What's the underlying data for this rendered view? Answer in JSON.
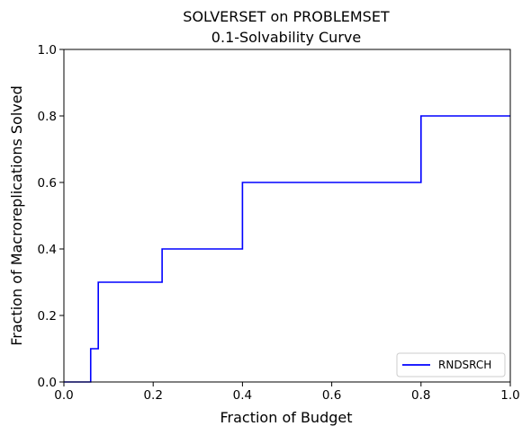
{
  "chart_data": {
    "type": "line",
    "step": true,
    "title_line1": "SOLVERSET on PROBLEMSET",
    "title_line2": "0.1-Solvability Curve",
    "xlabel": "Fraction of Budget",
    "ylabel": "Fraction of Macroreplications Solved",
    "xlim": [
      0.0,
      1.0
    ],
    "ylim": [
      0.0,
      1.0
    ],
    "xticks": [
      "0.0",
      "0.2",
      "0.4",
      "0.6",
      "0.8",
      "1.0"
    ],
    "yticks": [
      "0.0",
      "0.2",
      "0.4",
      "0.6",
      "0.8",
      "1.0"
    ],
    "grid": false,
    "legend_position": "lower-right",
    "series": [
      {
        "name": "RNDSRCH",
        "color": "#0000ff",
        "x": [
          0.0,
          0.06,
          0.06,
          0.077,
          0.077,
          0.22,
          0.22,
          0.4,
          0.4,
          0.8,
          0.8,
          1.0
        ],
        "y": [
          0.0,
          0.0,
          0.1,
          0.1,
          0.3,
          0.3,
          0.4,
          0.4,
          0.6,
          0.6,
          0.8,
          0.8
        ]
      }
    ]
  }
}
